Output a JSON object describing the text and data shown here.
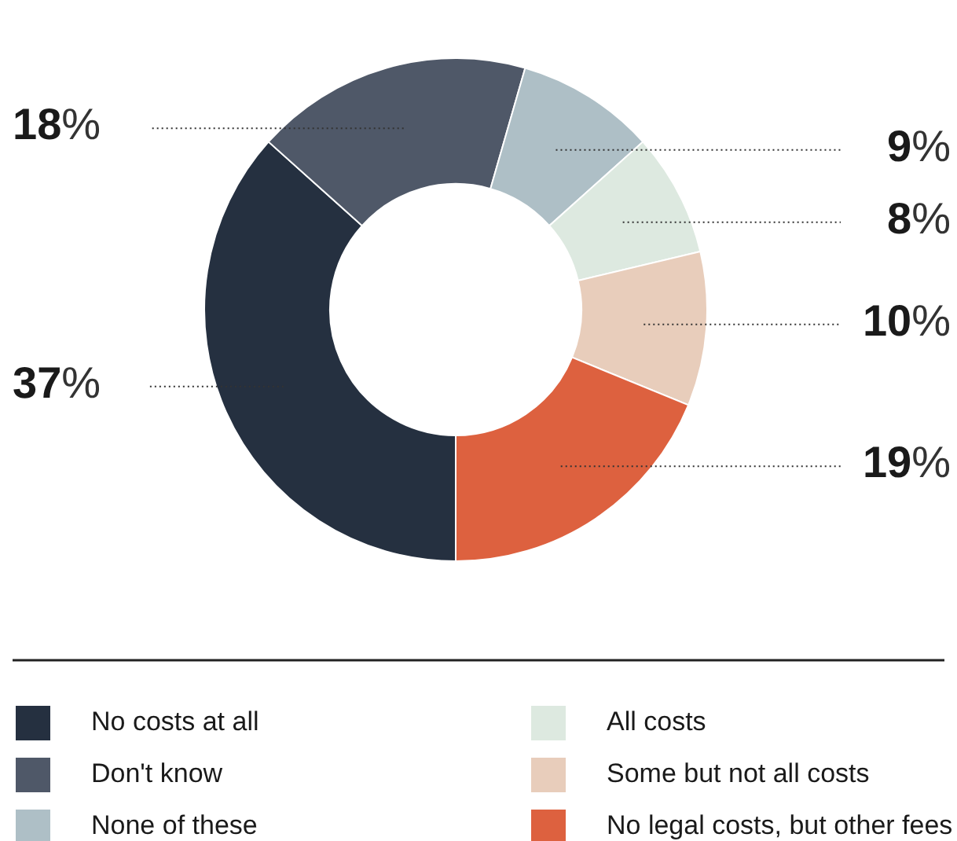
{
  "chart_data": {
    "type": "donut",
    "categories": [
      "No costs at all",
      "Don't know",
      "None of these",
      "All costs",
      "Some but not all costs",
      "No legal costs, but other fees"
    ],
    "values": [
      37,
      18,
      9,
      8,
      10,
      19
    ],
    "colors": [
      "#253040",
      "#4f5868",
      "#aebfc6",
      "#dde9e0",
      "#e8cdbb",
      "#dd613f"
    ],
    "value_labels": [
      "37%",
      "18%",
      "9%",
      "8%",
      "10%",
      "19%"
    ],
    "legend": "bottom"
  }
}
